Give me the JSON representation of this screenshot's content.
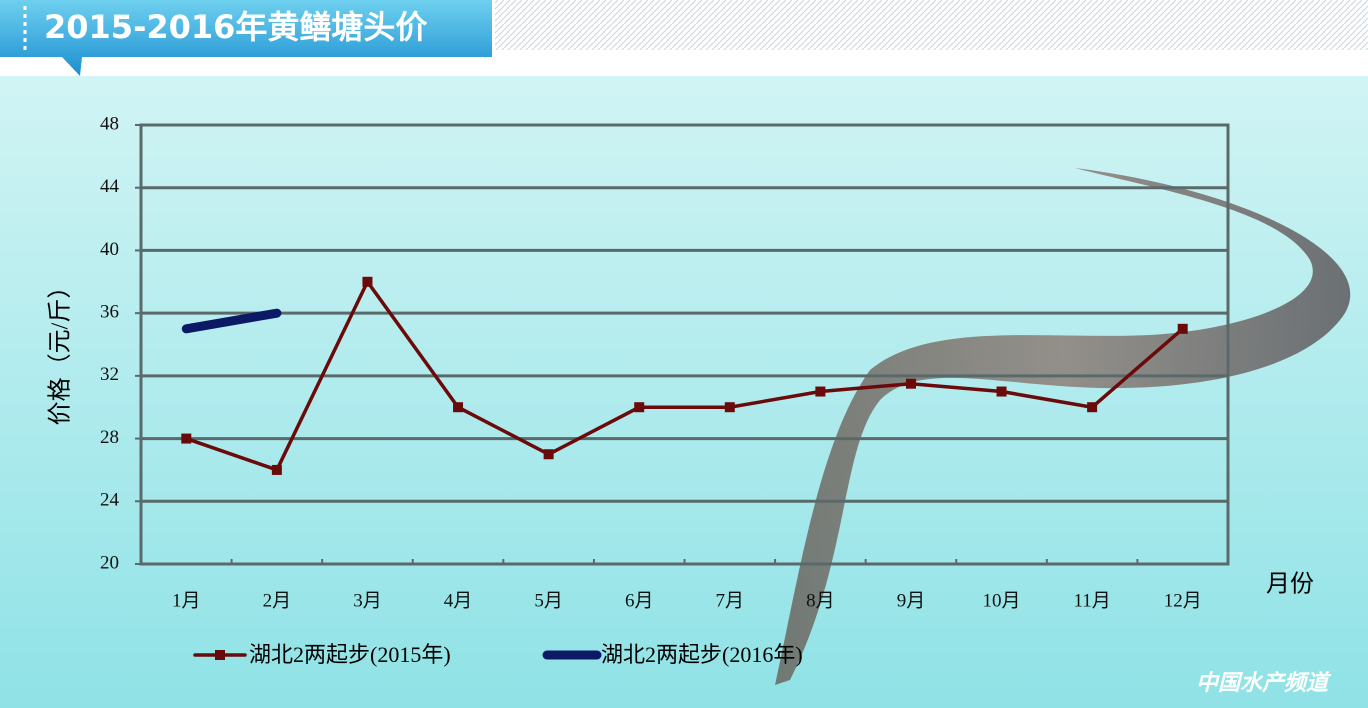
{
  "title": "2015-2016年黄鳝塘头价",
  "watermark": "中国水产频道",
  "chart_data": {
    "type": "line",
    "y_label": "价格（元/斤）",
    "x_label": "月份",
    "categories": [
      "1月",
      "2月",
      "3月",
      "4月",
      "5月",
      "6月",
      "7月",
      "8月",
      "9月",
      "10月",
      "11月",
      "12月"
    ],
    "series": [
      {
        "name": "湖北2两起步(2015年)",
        "color": "#6b0a0a",
        "values": [
          28,
          26,
          38,
          30,
          27,
          30,
          30,
          31,
          31.5,
          31,
          30,
          35
        ]
      },
      {
        "name": "湖北2两起步(2016年)",
        "color": "#0c1a66",
        "values": [
          35,
          36,
          null,
          null,
          null,
          null,
          null,
          null,
          null,
          null,
          null,
          null
        ]
      }
    ],
    "ylim": [
      20,
      48
    ],
    "yticks": [
      20,
      24,
      28,
      32,
      36,
      40,
      44,
      48
    ],
    "grid": true
  }
}
